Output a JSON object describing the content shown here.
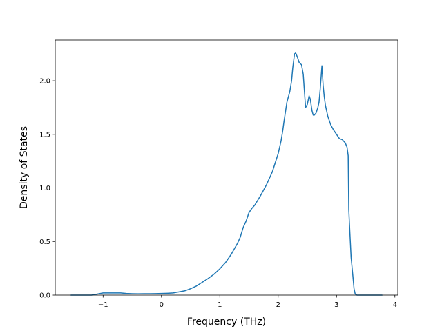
{
  "chart_data": {
    "type": "line",
    "title": "",
    "xlabel": "Frequency (THz)",
    "ylabel": "Density of States",
    "xlim": [
      -1.82,
      4.05
    ],
    "ylim": [
      0.0,
      2.38
    ],
    "xticks": [
      -1,
      0,
      1,
      2,
      3,
      4
    ],
    "yticks": [
      0.0,
      0.5,
      1.0,
      1.5,
      2.0,
      2.5
    ],
    "xtick_labels": [
      "−1",
      "0",
      "1",
      "2",
      "3",
      "4"
    ],
    "ytick_labels": [
      "0.0",
      "0.5",
      "1.0",
      "1.5",
      "2.0"
    ],
    "grid": false,
    "legend": "none",
    "series": [
      {
        "color": "#1f77b4",
        "x": [
          -1.55,
          -1.2,
          -1.1,
          -1.0,
          -0.9,
          -0.8,
          -0.7,
          -0.6,
          -0.5,
          -0.4,
          -0.3,
          -0.2,
          -0.1,
          0.0,
          0.1,
          0.2,
          0.3,
          0.4,
          0.5,
          0.6,
          0.7,
          0.8,
          0.9,
          1.0,
          1.1,
          1.2,
          1.3,
          1.35,
          1.4,
          1.45,
          1.5,
          1.55,
          1.6,
          1.7,
          1.8,
          1.9,
          2.0,
          2.05,
          2.08,
          2.1,
          2.15,
          2.2,
          2.23,
          2.25,
          2.28,
          2.3,
          2.33,
          2.36,
          2.4,
          2.43,
          2.45,
          2.47,
          2.5,
          2.53,
          2.55,
          2.58,
          2.6,
          2.62,
          2.65,
          2.68,
          2.7,
          2.72,
          2.75,
          2.77,
          2.79,
          2.81,
          2.85,
          2.9,
          2.95,
          3.0,
          3.05,
          3.1,
          3.15,
          3.18,
          3.2,
          3.21,
          3.22,
          3.25,
          3.28,
          3.3,
          3.32,
          3.35,
          3.4,
          3.5,
          3.6,
          3.78
        ],
        "y": [
          0.0,
          0.0,
          0.01,
          0.02,
          0.02,
          0.02,
          0.02,
          0.015,
          0.013,
          0.012,
          0.013,
          0.013,
          0.014,
          0.015,
          0.017,
          0.02,
          0.03,
          0.04,
          0.06,
          0.085,
          0.12,
          0.155,
          0.195,
          0.245,
          0.305,
          0.385,
          0.48,
          0.54,
          0.63,
          0.69,
          0.77,
          0.81,
          0.84,
          0.93,
          1.03,
          1.15,
          1.32,
          1.44,
          1.54,
          1.62,
          1.8,
          1.9,
          2.0,
          2.12,
          2.25,
          2.26,
          2.22,
          2.17,
          2.15,
          2.06,
          1.9,
          1.75,
          1.78,
          1.86,
          1.83,
          1.72,
          1.68,
          1.68,
          1.7,
          1.75,
          1.8,
          1.92,
          2.14,
          1.96,
          1.85,
          1.77,
          1.67,
          1.59,
          1.54,
          1.5,
          1.46,
          1.45,
          1.42,
          1.38,
          1.3,
          0.8,
          0.68,
          0.35,
          0.18,
          0.06,
          0.01,
          0.0,
          0.0,
          0.0,
          0.0,
          0.0
        ]
      }
    ]
  }
}
